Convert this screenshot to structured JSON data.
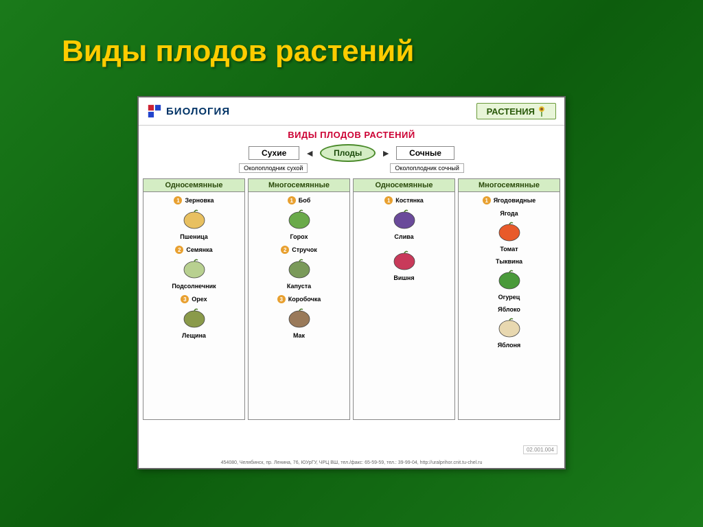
{
  "slide": {
    "title": "Виды плодов растений"
  },
  "chart": {
    "logo_text": "БИОЛОГИЯ",
    "subject_badge": "РАСТЕНИЯ",
    "title": "ВИДЫ ПЛОДОВ РАСТЕНИЙ",
    "center": "Плоды",
    "branches": {
      "left": "Сухие",
      "left_sub": "Околоплодник сухой",
      "right": "Сочные",
      "right_sub": "Околоплодник сочный"
    },
    "columns": [
      {
        "header": "Односемянные",
        "items": [
          {
            "num": "1",
            "type": "Зерновка",
            "example": "Пшеница",
            "color": "#e8c060"
          },
          {
            "num": "2",
            "type": "Семянка",
            "example": "Подсолнечник",
            "color": "#b8d090"
          },
          {
            "num": "3",
            "type": "Орех",
            "example": "Лещина",
            "color": "#8a9a4a"
          }
        ]
      },
      {
        "header": "Многосемянные",
        "items": [
          {
            "num": "1",
            "type": "Боб",
            "example": "Горох",
            "color": "#6aaa4a"
          },
          {
            "num": "2",
            "type": "Стручок",
            "example": "Капуста",
            "color": "#7a9a5a"
          },
          {
            "num": "3",
            "type": "Коробочка",
            "example": "Мак",
            "color": "#9a7a5a"
          }
        ]
      },
      {
        "header": "Односемянные",
        "items": [
          {
            "num": "1",
            "type": "Костянка",
            "example": "Слива",
            "color": "#6a4a9a"
          },
          {
            "num": "",
            "type": "",
            "example": "Вишня",
            "color": "#c83a5a"
          }
        ]
      },
      {
        "header": "Многосемянные",
        "items": [
          {
            "num": "1",
            "type": "Ягодовидные",
            "example": "",
            "color": ""
          },
          {
            "num": "",
            "type": "Ягода",
            "example": "Томат",
            "color": "#e85a2a"
          },
          {
            "num": "",
            "type": "Тыквина",
            "example": "Огурец",
            "color": "#4a9a3a"
          },
          {
            "num": "",
            "type": "Яблоко",
            "example": "Яблоня",
            "color": "#e8d8b0"
          }
        ]
      }
    ],
    "footer": "454080, Челябинск, пр. Ленина, 76, ЮУрГУ, ЧРЦ ВШ, тел./факс: 65-59-59, тел.: 39-99-04, http://uralprihor.cnit.tu-chel.ru",
    "corner_tag": "02.001.004"
  },
  "styling": {
    "title_color": "#ffcc00",
    "background_gradient": [
      "#1a7a1a",
      "#0d5d0d"
    ],
    "chart_bg": "#ffffff",
    "header_green": "#d4edc4",
    "title_red": "#cc0033"
  }
}
